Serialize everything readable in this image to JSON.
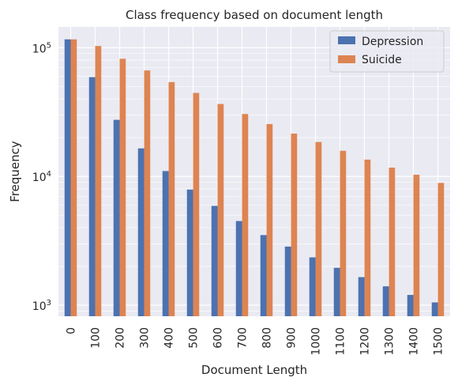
{
  "chart_data": {
    "type": "bar",
    "title": "Class frequency based on document length",
    "xlabel": "Document Length",
    "ylabel": "Frequency",
    "yscale": "log",
    "ylim": [
      820,
      145000
    ],
    "grid": true,
    "legend_position": "top-right",
    "categories": [
      "0",
      "100",
      "200",
      "300",
      "400",
      "500",
      "600",
      "700",
      "800",
      "900",
      "1000",
      "1100",
      "1200",
      "1300",
      "1400",
      "1500"
    ],
    "series": [
      {
        "name": "Depression",
        "color": "#4c72b0",
        "values": [
          116000,
          59000,
          27500,
          16500,
          11000,
          7900,
          5900,
          4500,
          3500,
          2850,
          2350,
          1950,
          1650,
          1400,
          1200,
          1050
        ]
      },
      {
        "name": "Suicide",
        "color": "#dd8452",
        "values": [
          116000,
          103000,
          82000,
          66500,
          54000,
          44500,
          36500,
          30500,
          25500,
          21500,
          18500,
          15800,
          13500,
          11700,
          10300,
          8900
        ]
      }
    ],
    "yticks": [
      {
        "value": 1000,
        "base": "10",
        "exp": "3"
      },
      {
        "value": 10000,
        "base": "10",
        "exp": "4"
      },
      {
        "value": 100000,
        "base": "10",
        "exp": "5"
      }
    ]
  }
}
